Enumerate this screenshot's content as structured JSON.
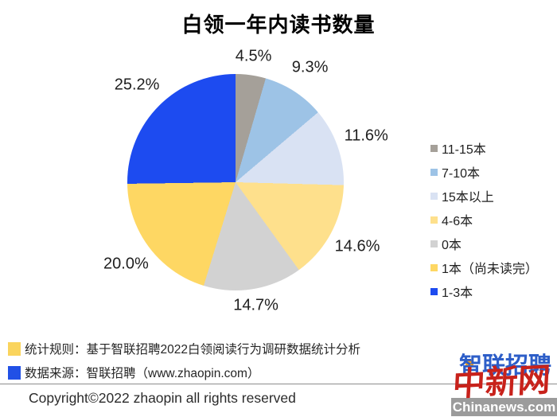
{
  "title": "白领一年内读书数量",
  "chart_data": {
    "type": "pie",
    "title": "白领一年内读书数量",
    "start_angle_deg": 0,
    "direction": "clockwise",
    "legend_position": "right",
    "slices": [
      {
        "label": "11-15本",
        "value": 4.5,
        "color": "#a5a099"
      },
      {
        "label": "7-10本",
        "value": 9.3,
        "color": "#9dc3e6"
      },
      {
        "label": "15本以上",
        "value": 11.6,
        "color": "#d9e2f3"
      },
      {
        "label": "4-6本",
        "value": 14.6,
        "color": "#fee08c"
      },
      {
        "label": "0本",
        "value": 14.7,
        "color": "#d2d2d2"
      },
      {
        "label": "1本（尚未读完）",
        "value": 20.0,
        "color": "#fed763"
      },
      {
        "label": "1-3本",
        "value": 25.2,
        "color": "#1d4bf0"
      }
    ],
    "value_labels": [
      "4.5%",
      "9.3%",
      "11.6%",
      "14.6%",
      "14.7%",
      "20.0%",
      "25.2%"
    ],
    "label_radius": [
      160,
      172,
      174,
      173,
      157,
      172,
      174
    ]
  },
  "notes": [
    {
      "text": "统计规则：基于智联招聘2022白领阅读行为调研数据统计分析",
      "marker_color": "#fad45d"
    },
    {
      "text": "数据来源：智联招聘（www.zhaopin.com）",
      "marker_color": "#2150e6"
    }
  ],
  "copyright": "Copyright©2022 zhaopin all rights reserved",
  "watermark": {
    "brand_text": "智联招聘",
    "stamp_text": "中新网",
    "site_text": "Chinanews.com",
    "brand_color": "#2d5ec8",
    "stamp_color": "#c8221b",
    "bar_color": "#9b9b9b"
  }
}
